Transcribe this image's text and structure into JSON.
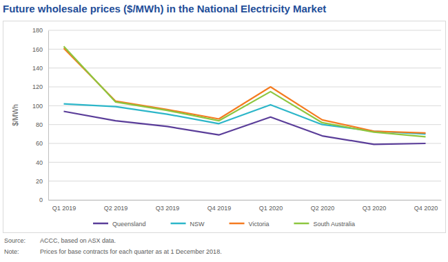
{
  "chart_data": {
    "type": "line",
    "title": "Future wholesale prices ($/MWh) in the National Electricity Market",
    "y_label": "$/MWh",
    "categories": [
      "Q1 2019",
      "Q2 2019",
      "Q3 2019",
      "Q4 2019",
      "Q1 2020",
      "Q2 2020",
      "Q3 2020",
      "Q4 2020"
    ],
    "series": [
      {
        "name": "Queensland",
        "color": "#5a3d99",
        "values": [
          94,
          84,
          78,
          69,
          88,
          68,
          59,
          60
        ]
      },
      {
        "name": "NSW",
        "color": "#2cb6c9",
        "values": [
          102,
          99,
          91,
          81,
          101,
          80,
          73,
          70
        ]
      },
      {
        "name": "Victoria",
        "color": "#f47b20",
        "values": [
          161,
          105,
          96,
          86,
          120,
          85,
          73,
          71
        ]
      },
      {
        "name": "South Australia",
        "color": "#8dc63f",
        "values": [
          163,
          104,
          95,
          84,
          115,
          82,
          72,
          67
        ]
      }
    ],
    "ylim": [
      0,
      180
    ],
    "yticks": [
      0,
      20,
      40,
      60,
      80,
      100,
      120,
      140,
      160,
      180
    ],
    "grid": true,
    "legend": "bottom",
    "notes": [
      {
        "label": "Source:",
        "text": "ACCC, based on ASX data."
      },
      {
        "label": "Note:",
        "text": "Prices for base contracts for each quarter as at 1 December 2018."
      }
    ]
  }
}
